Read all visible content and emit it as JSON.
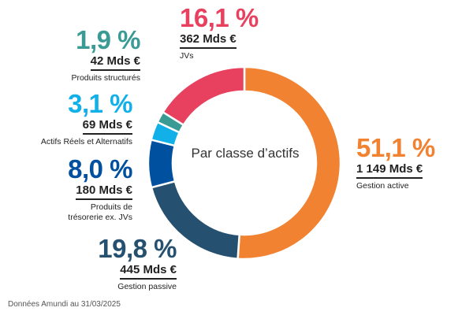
{
  "chart_data": {
    "type": "pie",
    "donut": true,
    "center_label": "Par classe d’actifs",
    "slices": [
      {
        "category": "Gestion active",
        "percent_label": "51,1 %",
        "value": 51.1,
        "amount": "1 149 Mds €",
        "color": "#f08231"
      },
      {
        "category": "Gestion passive",
        "percent_label": "19,8 %",
        "value": 19.8,
        "amount": "445 Mds €",
        "color": "#25506f"
      },
      {
        "category": "Produits de trésorerie ex. JVs",
        "percent_label": "8,0 %",
        "value": 8.0,
        "amount": "180 Mds €",
        "color": "#0050a0"
      },
      {
        "category": "Actifs Réels et Alternatifs",
        "percent_label": "3,1 %",
        "value": 3.1,
        "amount": "69 Mds €",
        "color": "#12b0e8"
      },
      {
        "category": "Produits structurés",
        "percent_label": "1,9 %",
        "value": 1.9,
        "amount": "42 Mds €",
        "color": "#3a9a94"
      },
      {
        "category": "JVs",
        "percent_label": "16,1 %",
        "value": 16.1,
        "amount": "362 Mds €",
        "color": "#e8415f"
      }
    ]
  },
  "footnote": "Données Amundi au 31/03/2025"
}
